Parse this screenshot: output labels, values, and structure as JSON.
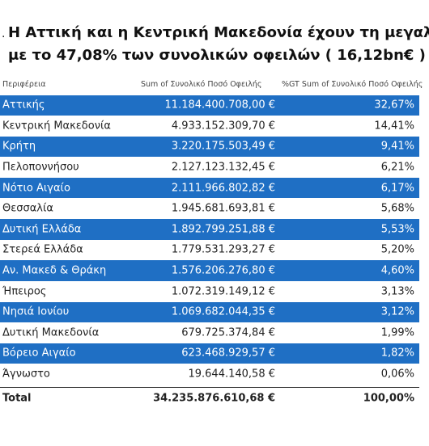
{
  "header": {
    "title_lines": [
      "Η Αττική και η Κεντρική Μακεδονία  έχουν τη μεγαλύτ",
      "με το 47,08% των συνολικών οφειλών ( 16,12bn€ )"
    ]
  },
  "table": {
    "columns": [
      "Περιφέρεια",
      "Sum of Συνολικό Ποσό Οφειλής",
      "%GT Sum of Συνολικό Ποσό Οφειλής"
    ],
    "rows": [
      [
        "Αττικής",
        "11.184.400.708,00 €",
        "32,67%"
      ],
      [
        "Κεντρική Μακεδονία",
        "4.933.152.309,70 €",
        "14,41%"
      ],
      [
        "Κρήτη",
        "3.220.175.503,49 €",
        "9,41%"
      ],
      [
        "Πελοποννήσου",
        "2.127.123.132,45 €",
        "6,21%"
      ],
      [
        "Νότιο Αιγαίο",
        "2.111.966.802,82 €",
        "6,17%"
      ],
      [
        "Θεσσαλία",
        "1.945.681.693,81 €",
        "5,68%"
      ],
      [
        "Δυτική Ελλάδα",
        "1.892.799.251,88 €",
        "5,53%"
      ],
      [
        "Στερεά Ελλάδα",
        "1.779.531.293,27 €",
        "5,20%"
      ],
      [
        "Αν. Μακεδ & Θράκη",
        "1.576.206.276,80 €",
        "4,60%"
      ],
      [
        "Ήπειρος",
        "1.072.319.149,12 €",
        "3,13%"
      ],
      [
        "Νησιά Ιονίου",
        "1.069.682.044,35 €",
        "3,12%"
      ],
      [
        "Δυτική Μακεδονία",
        "679.725.374,84 €",
        "1,99%"
      ],
      [
        "Βόρειο Αιγαίο",
        "623.468.929,57 €",
        "1,82%"
      ],
      [
        "Άγνωστο",
        "19.644.140,58 €",
        "0,06%"
      ]
    ],
    "total": [
      "Total",
      "34.235.876.610,68 €",
      "100,00%"
    ]
  }
}
